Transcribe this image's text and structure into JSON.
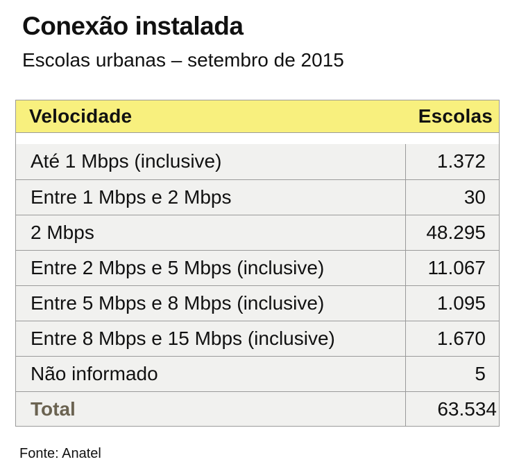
{
  "title": "Conexão instalada",
  "subtitle": "Escolas urbanas – setembro de 2015",
  "source": "Fonte: Anatel",
  "colors": {
    "header_bg": "#f8f07e",
    "rows_bg": "#f1f1ef",
    "total_label": "#6b6351"
  },
  "chart_data": {
    "type": "table",
    "columns": [
      "Velocidade",
      "Escolas"
    ],
    "rows": [
      {
        "label": "Até 1 Mbps (inclusive)",
        "value": "1.372"
      },
      {
        "label": "Entre 1 Mbps e 2 Mbps",
        "value": "30"
      },
      {
        "label": "2 Mbps",
        "value": "48.295"
      },
      {
        "label": "Entre 2 Mbps e 5 Mbps (inclusive)",
        "value": "11.067"
      },
      {
        "label": "Entre 5 Mbps e 8 Mbps (inclusive)",
        "value": "1.095"
      },
      {
        "label": "Entre 8 Mbps e 15 Mbps (inclusive)",
        "value": "1.670"
      },
      {
        "label": "Não informado",
        "value": "5"
      }
    ],
    "total": {
      "label": "Total",
      "value": "63.534"
    }
  }
}
